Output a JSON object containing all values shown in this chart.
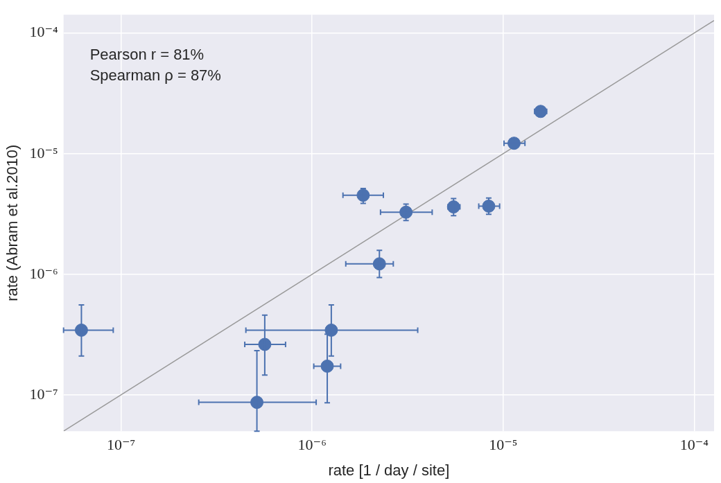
{
  "chart_data": {
    "type": "scatter",
    "xlabel": "rate [1 / day / site]",
    "ylabel": "rate (Abram et al.2010)",
    "log": "xy",
    "grid": true,
    "legend": false,
    "marker": "circle",
    "xlim": [
      5e-08,
      0.000127
    ],
    "ylim": [
      5e-08,
      0.000142
    ],
    "xticks": [
      {
        "value": 1e-07,
        "label": "10⁻⁷"
      },
      {
        "value": 1e-06,
        "label": "10⁻⁶"
      },
      {
        "value": 1e-05,
        "label": "10⁻⁵"
      },
      {
        "value": 0.0001,
        "label": "10⁻⁴"
      }
    ],
    "yticks": [
      {
        "value": 1e-07,
        "label": "10⁻⁷"
      },
      {
        "value": 1e-06,
        "label": "10⁻⁶"
      },
      {
        "value": 1e-05,
        "label": "10⁻⁵"
      },
      {
        "value": 0.0001,
        "label": "10⁻⁴"
      }
    ],
    "annotations": [
      "Pearson r = 81%",
      "Spearman ρ = 87%"
    ],
    "series": [
      {
        "type": "line",
        "marker": "none",
        "color": "#999999",
        "x": [
          5e-08,
          0.000127
        ],
        "values": [
          5e-08,
          0.000127
        ]
      },
      {
        "type": "scatter",
        "color": "#4c72b0",
        "x": [
          6.2e-08,
          5.65e-07,
          1.26e-06,
          1.2e-06,
          5.14e-07,
          2.25e-06,
          1.85e-06,
          3.1e-06,
          5.5e-06,
          8.4e-06,
          1.14e-05,
          1.57e-05
        ],
        "values": [
          3.44e-07,
          2.62e-07,
          3.44e-07,
          1.73e-07,
          8.67e-08,
          1.22e-06,
          4.52e-06,
          3.27e-06,
          3.62e-06,
          3.67e-06,
          1.22e-05,
          2.24e-05
        ],
        "xerrors": [
          [
            5e-08,
            9.1e-08
          ],
          [
            4.44e-07,
            7.26e-07
          ],
          [
            4.5e-07,
            3.57e-06
          ],
          [
            1.02e-06,
            1.41e-06
          ],
          [
            2.55e-07,
            1.05e-06
          ],
          [
            1.5e-06,
            2.66e-06
          ],
          [
            1.45e-06,
            2.36e-06
          ],
          [
            2.28e-06,
            4.25e-06
          ],
          [
            5.14e-06,
            5.94e-06
          ],
          [
            7.45e-06,
            9.58e-06
          ],
          [
            1.01e-05,
            1.3e-05
          ],
          [
            1.46e-05,
            1.69e-05
          ]
        ],
        "errors": [
          [
            2.1e-07,
            5.57e-07
          ],
          [
            1.46e-07,
            4.58e-07
          ],
          [
            2.1e-07,
            5.57e-07
          ],
          [
            8.6e-08,
            3.18e-07
          ],
          [
            5e-08,
            2.33e-07
          ],
          [
            9.4e-07,
            1.58e-06
          ],
          [
            3.87e-06,
            5.15e-06
          ],
          [
            2.79e-06,
            3.82e-06
          ],
          [
            3.06e-06,
            4.24e-06
          ],
          [
            3.14e-06,
            4.29e-06
          ],
          null,
          null
        ]
      }
    ]
  }
}
